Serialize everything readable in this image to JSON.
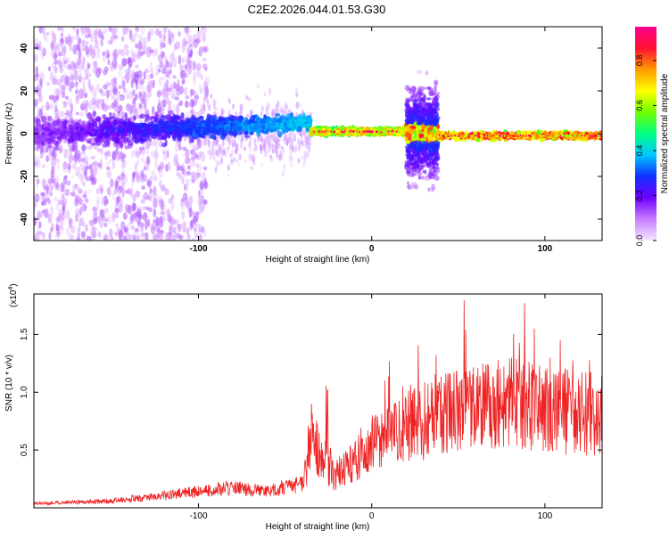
{
  "title": "C2E2.2026.044.01.53.G30",
  "chart_data": [
    {
      "type": "heatmap",
      "xlabel": "Height of straight line (km)",
      "ylabel": "Frequency (Hz)",
      "xlim": [
        -195,
        133
      ],
      "ylim": [
        -50,
        50
      ],
      "x_ticks": [
        -100,
        0,
        100
      ],
      "y_ticks": [
        -40,
        -20,
        0,
        20,
        40
      ],
      "grid": false,
      "colorbar": {
        "label": "Normalized spectral amplitude",
        "range": [
          0,
          0.95
        ],
        "ticks": [
          0,
          0.2,
          0.4,
          0.6,
          0.8
        ],
        "colors": [
          "#f4e6ff",
          "#c77dff",
          "#7000ff",
          "#1030ff",
          "#00c8ff",
          "#00ff80",
          "#70ff00",
          "#ffff00",
          "#ff9a00",
          "#ff1030",
          "#ff0090"
        ]
      },
      "features": [
        {
          "x_range": [
            -195,
            -35
          ],
          "freq_center": 5,
          "freq_spread": 12,
          "amplitude": 0.25
        },
        {
          "x_range": [
            -35,
            20
          ],
          "freq_center": 1,
          "freq_spread": 2,
          "amplitude": 0.7
        },
        {
          "x_range": [
            20,
            38
          ],
          "freq_center": 0,
          "freq_spread": 35,
          "amplitude": 0.3
        },
        {
          "x_range": [
            38,
            133
          ],
          "freq_center": -1,
          "freq_spread": 2,
          "amplitude": 0.8
        }
      ]
    },
    {
      "type": "line",
      "xlabel": "Height of straight line (km)",
      "ylabel": "SNR (10 * v/v)",
      "y_multiplier_label": "(x10",
      "y_multiplier_exp": "4",
      "y_multiplier_close": ")",
      "xlim": [
        -195,
        133
      ],
      "ylim": [
        0,
        18500
      ],
      "x_ticks": [
        -100,
        0,
        100
      ],
      "y_ticks": [
        5000,
        10000,
        15000
      ],
      "y_tick_labels": [
        "0.5",
        "1.0",
        "1.5"
      ],
      "color": "#ee2222",
      "envelope": [
        {
          "x": -195,
          "y": 300
        },
        {
          "x": -150,
          "y": 500
        },
        {
          "x": -120,
          "y": 900
        },
        {
          "x": -80,
          "y": 1500
        },
        {
          "x": -60,
          "y": 1200
        },
        {
          "x": -40,
          "y": 1800
        },
        {
          "x": -35,
          "y": 6000
        },
        {
          "x": -28,
          "y": 4000
        },
        {
          "x": -20,
          "y": 3000
        },
        {
          "x": -10,
          "y": 4000
        },
        {
          "x": 0,
          "y": 5500
        },
        {
          "x": 20,
          "y": 7000
        },
        {
          "x": 40,
          "y": 8000
        },
        {
          "x": 60,
          "y": 8500
        },
        {
          "x": 80,
          "y": 9000
        },
        {
          "x": 100,
          "y": 8500
        },
        {
          "x": 133,
          "y": 8000
        }
      ]
    }
  ]
}
